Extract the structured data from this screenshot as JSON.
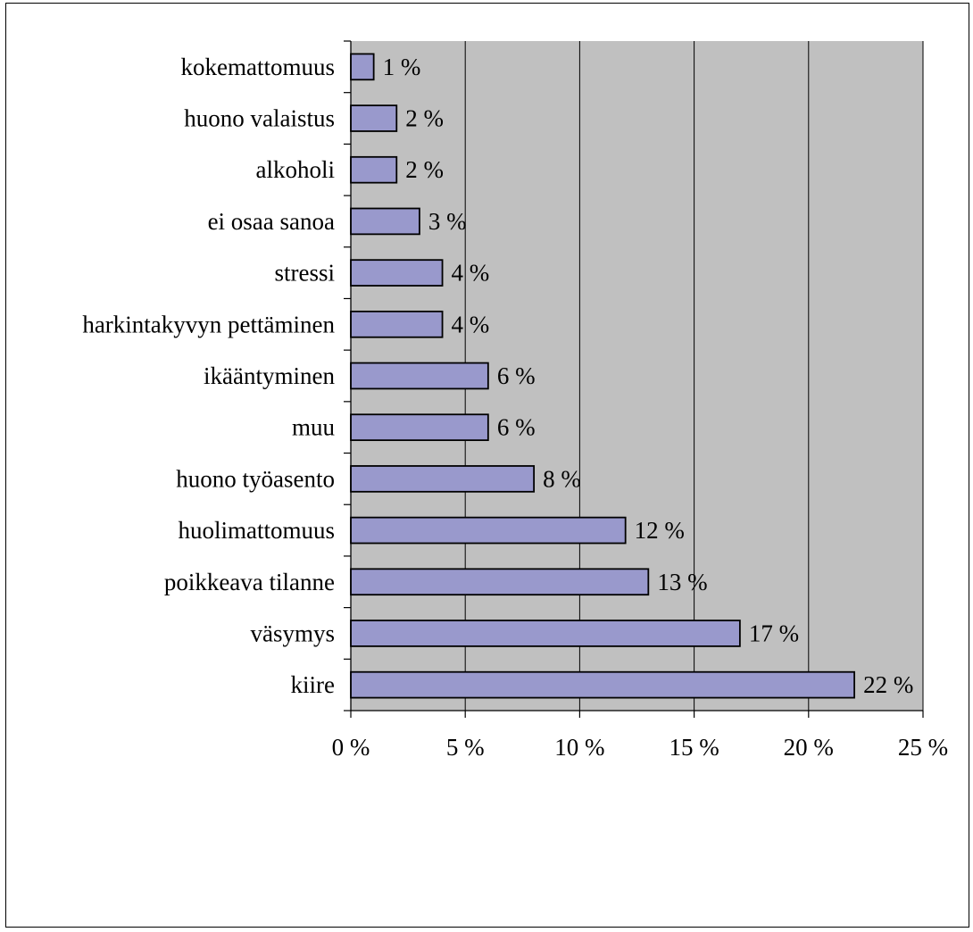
{
  "chart_data": {
    "type": "bar",
    "orientation": "horizontal",
    "title": "",
    "xlabel": "",
    "ylabel": "",
    "categories": [
      "kiire",
      "väsymys",
      "poikkeava tilanne",
      "huolimattomuus",
      "huono työasento",
      "muu",
      "ikääntyminen",
      "harkintakyvyn pettäminen",
      "stressi",
      "ei osaa sanoa",
      "alkoholi",
      "huono valaistus",
      "kokemattomuus"
    ],
    "values": [
      22,
      17,
      13,
      12,
      8,
      6,
      6,
      4,
      4,
      3,
      2,
      2,
      1
    ],
    "value_labels": [
      "22 %",
      "17 %",
      "13 %",
      "12 %",
      "8 %",
      "6 %",
      "6 %",
      "4 %",
      "4 %",
      "3 %",
      "2 %",
      "2 %",
      "1 %"
    ],
    "xlim": [
      0,
      25
    ],
    "x_ticks": [
      0,
      5,
      10,
      15,
      20,
      25
    ],
    "x_tick_labels": [
      "0 %",
      "5 %",
      "10 %",
      "15 %",
      "20 %",
      "25 %"
    ],
    "grid": "vertical",
    "legend": "none",
    "colors": {
      "bar_fill": "#9999CC",
      "bar_stroke": "#000000",
      "plot_background": "#C0C0C0",
      "gridline": "#000000"
    }
  }
}
